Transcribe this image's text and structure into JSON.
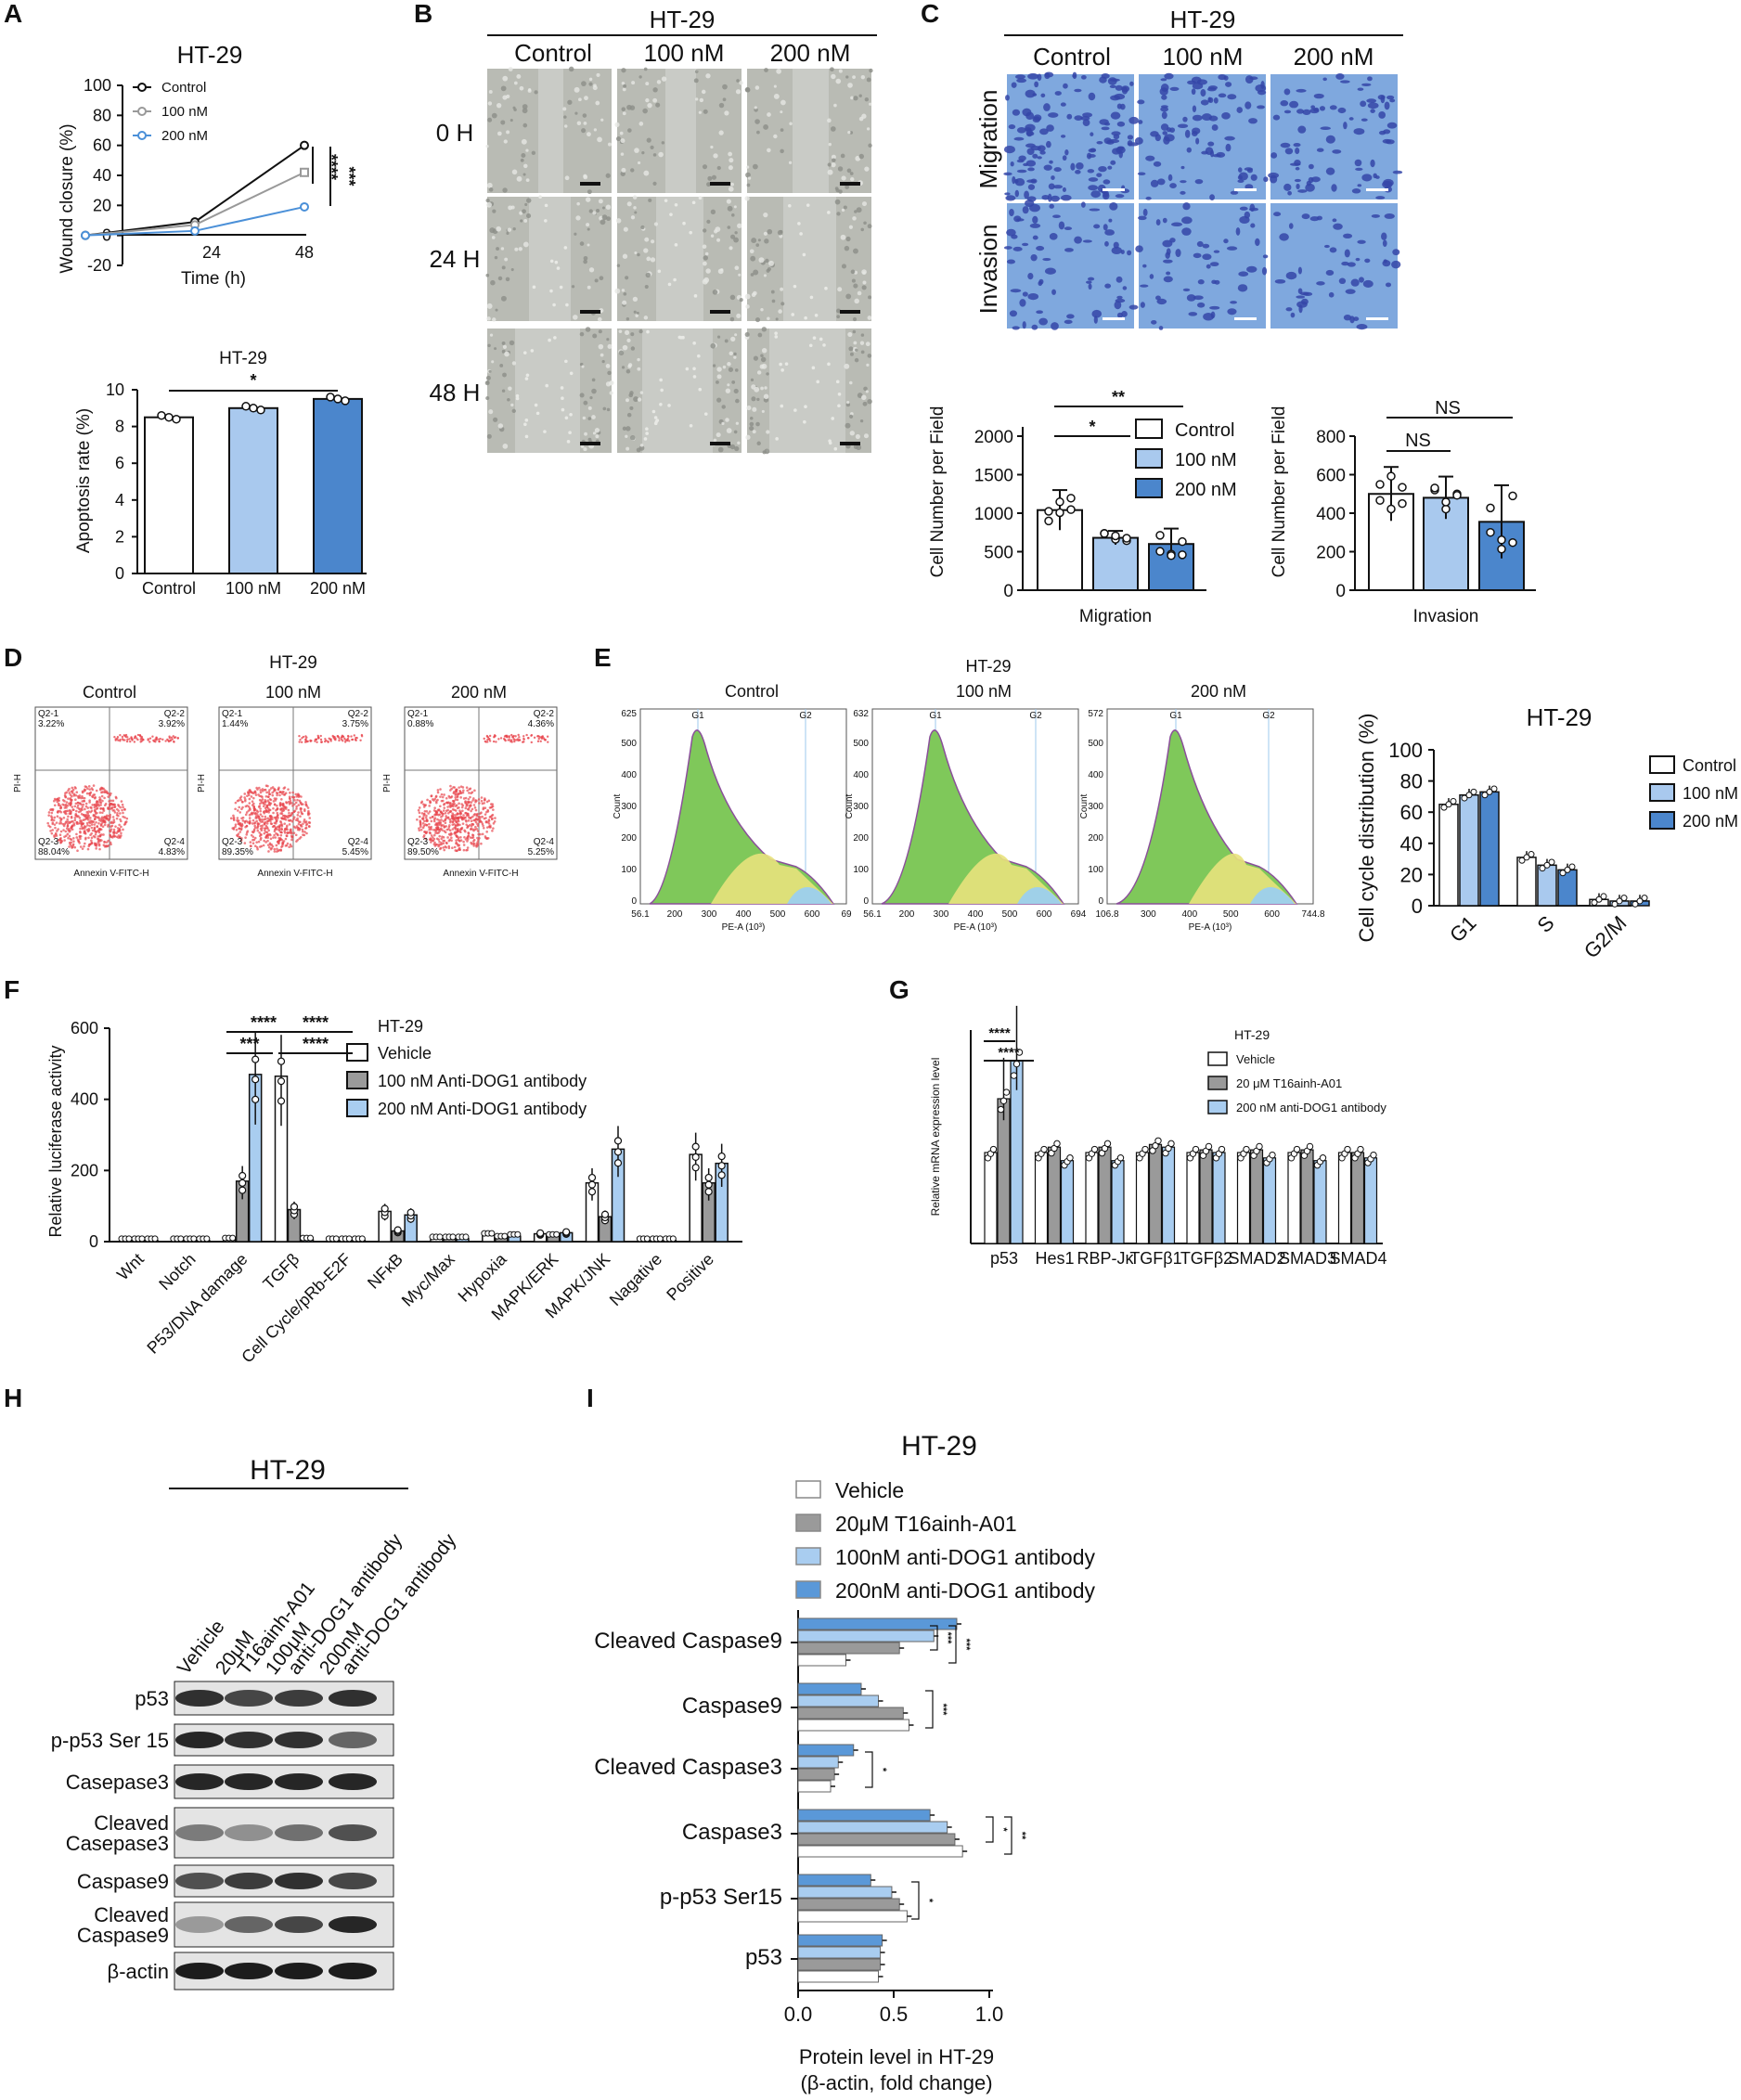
{
  "panel_letters": [
    "A",
    "B",
    "C",
    "D",
    "E",
    "F",
    "G",
    "H",
    "I"
  ],
  "colors": {
    "control": "#ffffff",
    "c100": "#a9c9ee",
    "c200": "#4b86cc",
    "grey": "#9a9a9a",
    "light_blue": "#a9cdf0",
    "mid_blue": "#5a98d8",
    "flow_red": "#e8474f",
    "stain": "#3547a8"
  },
  "panelA": {
    "title": "HT-29",
    "legend": [
      "Control",
      "100 nM",
      "200 nM"
    ],
    "ylabel": "Wound closure (%)",
    "xlabel": "Time (h)",
    "yticks": [
      "100",
      "80",
      "60",
      "40",
      "20",
      "0",
      "-20"
    ],
    "xticks": [
      "24",
      "48"
    ],
    "sig": [
      "****",
      "***"
    ]
  },
  "panelA2": {
    "title": "HT-29",
    "ylabel": "Apoptosis rate (%)",
    "yticks": [
      "10",
      "8",
      "6",
      "4",
      "2",
      "0"
    ],
    "categories": [
      "Control",
      "100 nM",
      "200 nM"
    ],
    "sig": "*"
  },
  "panelB": {
    "title": "HT-29",
    "cols": [
      "Control",
      "100 nM",
      "200 nM"
    ],
    "rows": [
      "0 H",
      "24 H",
      "48 H"
    ]
  },
  "panelC": {
    "title": "HT-29",
    "cols": [
      "Control",
      "100 nM",
      "200 nM"
    ],
    "rows": [
      "Migration",
      "Invasion"
    ],
    "legend": [
      "Control",
      "100 nM",
      "200 nM"
    ],
    "mig_ylabel": "Cell Number per Field",
    "mig_yticks": [
      "2000",
      "1500",
      "1000",
      "500",
      "0"
    ],
    "mig_xlabel": "Migration",
    "mig_sig": [
      "**",
      "*"
    ],
    "inv_ylabel": "Cell Number per Field",
    "inv_yticks": [
      "800",
      "600",
      "400",
      "200",
      "0"
    ],
    "inv_xlabel": "Invasion",
    "inv_sig": [
      "NS",
      "NS"
    ]
  },
  "panelD": {
    "title": "HT-29",
    "plots": [
      {
        "label": "Control",
        "q1": "Q2-1\n3.22%",
        "q2": "Q2-2\n3.92%",
        "q3": "Q2-3\n88.04%",
        "q4": "Q2-4\n4.83%"
      },
      {
        "label": "100 nM",
        "q1": "Q2-1\n1.44%",
        "q2": "Q2-2\n3.75%",
        "q3": "Q2-3\n89.35%",
        "q4": "Q2-4\n5.45%"
      },
      {
        "label": "200 nM",
        "q1": "Q2-1\n0.88%",
        "q2": "Q2-2\n4.36%",
        "q3": "Q2-3\n89.50%",
        "q4": "Q2-4\n5.25%"
      }
    ],
    "xlabel": "Annexin V-FITC-H",
    "ylabel": "PI-H"
  },
  "panelE": {
    "title": "HT-29",
    "plots": [
      {
        "label": "Control",
        "ymax": "625",
        "xmin": "56.1",
        "xticks": [
          "56.1",
          "200",
          "300",
          "400",
          "500",
          "600",
          "69"
        ]
      },
      {
        "label": "100 nM",
        "ymax": "632",
        "xmin": "56.1",
        "xticks": [
          "56.1",
          "200",
          "300",
          "400",
          "500",
          "600",
          "694"
        ]
      },
      {
        "label": "200 nM",
        "ymax": "572",
        "xmin": "106.8",
        "xticks": [
          "106.8",
          "300",
          "400",
          "500",
          "600",
          "744.8"
        ]
      }
    ],
    "peak_labels": [
      "G1",
      "G2"
    ],
    "xlabel": "PE-A (10³)",
    "ylabel": "Count",
    "bar_title": "HT-29",
    "bar_ylabel": "Cell cycle distribution (%)",
    "bar_yticks": [
      "100",
      "80",
      "60",
      "40",
      "20",
      "0"
    ],
    "bar_categories": [
      "G1",
      "S",
      "G2/M"
    ],
    "legend": [
      "Control",
      "100 nM",
      "200 nM"
    ]
  },
  "panelF": {
    "title": "HT-29",
    "ylabel": "Relative luciferase activity",
    "yticks": [
      "600",
      "400",
      "200",
      "0"
    ],
    "categories": [
      "Wnt",
      "Notch",
      "P53/DNA damage",
      "TGFβ",
      "Cell Cycle/pRb-E2F",
      "NFκB",
      "Myc/Max",
      "Hypoxia",
      "MAPK/ERK",
      "MAPK/JNK",
      "Nagative",
      "Positive"
    ],
    "legend": [
      "Vehicle",
      "100 nM Anti-DOG1 antibody",
      "200 nM Anti-DOG1 antibody"
    ],
    "sig": [
      "****",
      "***",
      "****",
      "****"
    ]
  },
  "panelG": {
    "title": "HT-29",
    "ylabel": "Relative mRNA expression level",
    "categories": [
      "p53",
      "Hes1",
      "RBP-Jκ",
      "TGFβ1",
      "TGFβ2",
      "SMAD2",
      "SMAD3",
      "SMAD4"
    ],
    "legend": [
      "Vehicle",
      "20 μM T16ainh-A01",
      "200 nM anti-DOG1 antibody"
    ],
    "sig": [
      "****",
      "****"
    ]
  },
  "panelH": {
    "title": "HT-29",
    "lanes": [
      "Vehicle",
      "20μM\nT16ainh-A01",
      "100μM\nanti-DOG1 antibody",
      "200nM\nanti-DOG1 antibody"
    ],
    "rows": [
      "p53",
      "p-p53 Ser 15",
      "Casepase3",
      "Cleaved\nCasepase3",
      "Caspase9",
      "Cleaved\nCaspase9",
      "β-actin"
    ]
  },
  "panelI": {
    "title": "HT-29",
    "legend": [
      "Vehicle",
      "20μM T16ainh-A01",
      "100nM anti-DOG1 antibody",
      "200nM anti-DOG1 antibody"
    ],
    "rows": [
      "Cleaved Caspase9",
      "Caspase9",
      "Cleaved Caspase3",
      "Caspase3",
      "p-p53 Ser15",
      "p53"
    ],
    "xticks": [
      "0.0",
      "0.5",
      "1.0"
    ],
    "xlabel": "Protein level in HT-29",
    "xlabel2": "(β-actin, fold change)"
  },
  "chart_data": [
    {
      "type": "line",
      "id": "A-wound",
      "title": "HT-29",
      "xlabel": "Time (h)",
      "ylabel": "Wound closure (%)",
      "ylim": [
        -20,
        100
      ],
      "x": [
        0,
        24,
        48
      ],
      "series": [
        {
          "name": "Control",
          "values": [
            0,
            9,
            60
          ]
        },
        {
          "name": "100 nM",
          "values": [
            0,
            7,
            42
          ]
        },
        {
          "name": "200 nM",
          "values": [
            0,
            3,
            19
          ]
        }
      ]
    },
    {
      "type": "bar",
      "id": "A-apoptosis",
      "title": "HT-29",
      "ylabel": "Apoptosis rate (%)",
      "ylim": [
        0,
        10
      ],
      "categories": [
        "Control",
        "100 nM",
        "200 nM"
      ],
      "values": [
        8.5,
        9.0,
        9.5
      ]
    },
    {
      "type": "bar",
      "id": "C-migration",
      "xlabel": "Migration",
      "ylabel": "Cell Number per Field",
      "ylim": [
        0,
        2000
      ],
      "categories": [
        "Control",
        "100 nM",
        "200 nM"
      ],
      "values": [
        1040,
        680,
        600
      ],
      "errors": [
        260,
        90,
        200
      ]
    },
    {
      "type": "bar",
      "id": "C-invasion",
      "xlabel": "Invasion",
      "ylabel": "Cell Number per Field",
      "ylim": [
        0,
        800
      ],
      "categories": [
        "Control",
        "100 nM",
        "200 nM"
      ],
      "values": [
        500,
        480,
        355
      ],
      "errors": [
        140,
        110,
        190
      ]
    },
    {
      "type": "bar",
      "id": "E-cellcycle",
      "title": "HT-29",
      "ylabel": "Cell cycle distribution (%)",
      "ylim": [
        0,
        100
      ],
      "categories": [
        "G1",
        "S",
        "G2/M"
      ],
      "series": [
        {
          "name": "Control",
          "values": [
            65,
            31,
            4
          ]
        },
        {
          "name": "100 nM",
          "values": [
            71,
            26,
            3
          ]
        },
        {
          "name": "200 nM",
          "values": [
            73,
            23,
            3
          ]
        }
      ]
    },
    {
      "type": "bar",
      "id": "F-luciferase",
      "title": "HT-29",
      "ylabel": "Relative luciferase activity",
      "ylim": [
        0,
        600
      ],
      "categories": [
        "Wnt",
        "Notch",
        "P53/DNA damage",
        "TGFβ",
        "Cell Cycle/pRb-E2F",
        "NFκB",
        "Myc/Max",
        "Hypoxia",
        "MAPK/ERK",
        "MAPK/JNK",
        "Nagative",
        "Positive"
      ],
      "series": [
        {
          "name": "Vehicle",
          "values": [
            3,
            3,
            5,
            465,
            3,
            85,
            8,
            18,
            22,
            165,
            3,
            245
          ]
        },
        {
          "name": "100 nM Anti-DOG1 antibody",
          "values": [
            3,
            3,
            170,
            90,
            3,
            30,
            8,
            10,
            15,
            70,
            3,
            165
          ]
        },
        {
          "name": "200 nM Anti-DOG1 antibody",
          "values": [
            3,
            3,
            470,
            5,
            3,
            75,
            8,
            15,
            25,
            260,
            3,
            220
          ]
        }
      ]
    },
    {
      "type": "bar",
      "id": "G-mrna",
      "title": "HT-29",
      "ylabel": "Relative mRNA expression level",
      "ylim": [
        0,
        4
      ],
      "categories": [
        "p53",
        "Hes1",
        "RBP-Jκ",
        "TGFβ1",
        "TGFβ2",
        "SMAD2",
        "SMAD3",
        "SMAD4"
      ],
      "series": [
        {
          "name": "Vehicle",
          "values": [
            1.0,
            1.0,
            1.0,
            1.0,
            1.0,
            1.0,
            1.0,
            1.0
          ]
        },
        {
          "name": "20 μM T16ainh-A01",
          "values": [
            2.0,
            1.1,
            1.1,
            1.15,
            1.05,
            1.05,
            1.05,
            1.0
          ]
        },
        {
          "name": "200 nM anti-DOG1 antibody",
          "values": [
            2.7,
            0.85,
            0.85,
            1.1,
            1.0,
            0.9,
            0.85,
            0.9
          ]
        }
      ]
    },
    {
      "type": "bar",
      "id": "I-protein",
      "title": "HT-29",
      "xlabel": "Protein level in HT-29 (β-actin, fold change)",
      "xlim": [
        0,
        1.0
      ],
      "categories": [
        "Cleaved Caspase9",
        "Caspase9",
        "Cleaved Caspase3",
        "Caspase3",
        "p-p53 Ser15",
        "p53"
      ],
      "series": [
        {
          "name": "Vehicle",
          "values": [
            0.25,
            0.58,
            0.17,
            0.86,
            0.57,
            0.42
          ]
        },
        {
          "name": "20μM T16ainh-A01",
          "values": [
            0.53,
            0.55,
            0.19,
            0.82,
            0.53,
            0.43
          ]
        },
        {
          "name": "100nM anti-DOG1 antibody",
          "values": [
            0.71,
            0.42,
            0.21,
            0.78,
            0.49,
            0.43
          ]
        },
        {
          "name": "200nM anti-DOG1 antibody",
          "values": [
            0.83,
            0.33,
            0.29,
            0.69,
            0.38,
            0.44
          ]
        }
      ]
    }
  ]
}
